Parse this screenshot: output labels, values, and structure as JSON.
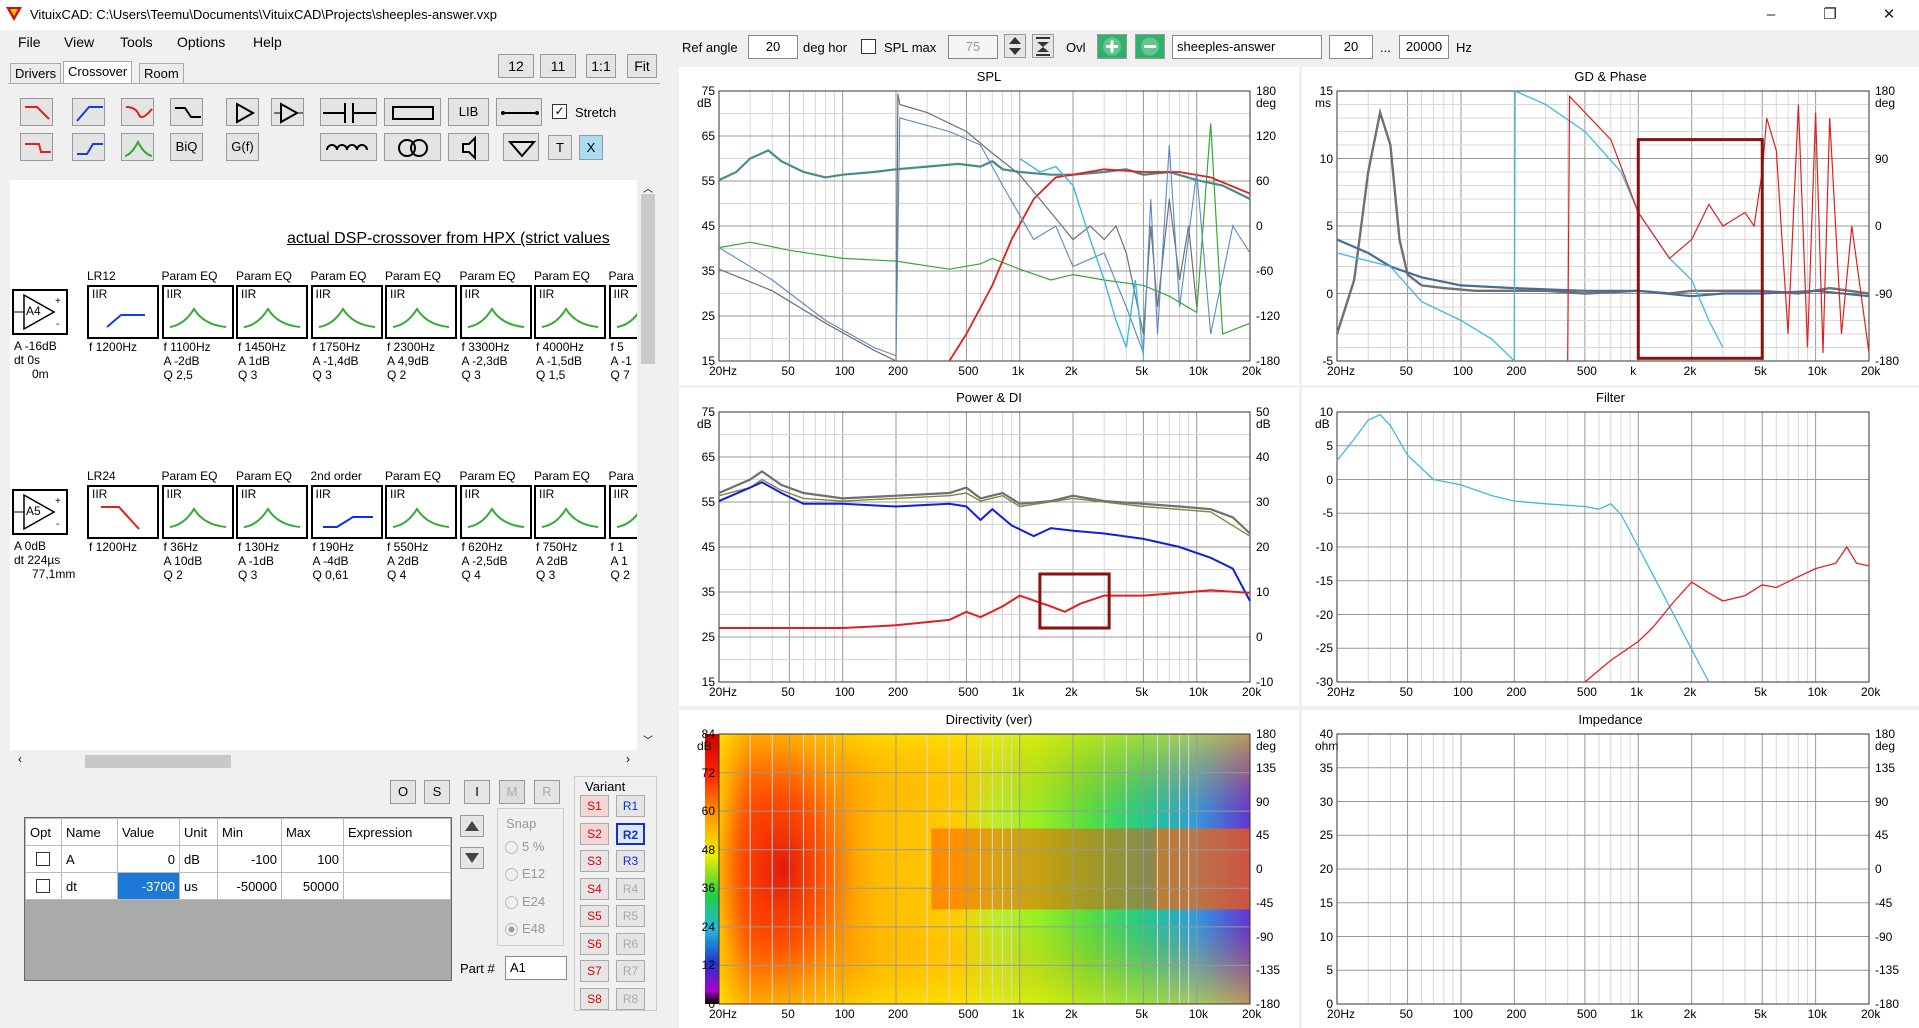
{
  "window": {
    "title": "VituixCAD: C:\\Users\\Teemu\\Documents\\VituixCAD\\Projects\\sheeples-answer.vxp",
    "minimize": "–",
    "restore": "❐",
    "close": "✕"
  },
  "menu": [
    "File",
    "View",
    "Tools",
    "Options",
    "Help"
  ],
  "tabs": [
    "Drivers",
    "Crossover",
    "Room"
  ],
  "zoom_buttons": [
    "12",
    "11",
    "1:1",
    "Fit"
  ],
  "toolbar": {
    "lib": "LIB",
    "biq": "BiQ",
    "gf": "G(f)",
    "t": "T",
    "x": "X",
    "stretch": "Stretch"
  },
  "canvas_title": "actual DSP-crossover from HPX (strict values",
  "row1": {
    "amp": {
      "label": "A4",
      "a": "A  -16dB",
      "dt": "dt 0s",
      "d": "0m"
    },
    "blocks": [
      {
        "head": "LR12",
        "t": "IIR",
        "l1": "f  1200Hz",
        "l2": "",
        "l3": ""
      },
      {
        "head": "Param EQ",
        "t": "IIR",
        "l1": "f  1100Hz",
        "l2": "A  -2dB",
        "l3": "Q 2,5"
      },
      {
        "head": "Param EQ",
        "t": "IIR",
        "l1": "f  1450Hz",
        "l2": "A  1dB",
        "l3": "Q 3"
      },
      {
        "head": "Param EQ",
        "t": "IIR",
        "l1": "f  1750Hz",
        "l2": "A  -1,4dB",
        "l3": "Q 3"
      },
      {
        "head": "Param EQ",
        "t": "IIR",
        "l1": "f  2300Hz",
        "l2": "A  4,9dB",
        "l3": "Q 2"
      },
      {
        "head": "Param EQ",
        "t": "IIR",
        "l1": "f  3300Hz",
        "l2": "A  -2,3dB",
        "l3": "Q 3"
      },
      {
        "head": "Param EQ",
        "t": "IIR",
        "l1": "f  4000Hz",
        "l2": "A  -1,5dB",
        "l3": "Q 1,5"
      },
      {
        "head": "Para",
        "t": "IIR",
        "l1": "f  5",
        "l2": "A  -1",
        "l3": "Q 7"
      }
    ]
  },
  "row2": {
    "amp": {
      "label": "A5",
      "a": "A  0dB",
      "dt": "dt 224µs",
      "d": "77,1mm"
    },
    "blocks": [
      {
        "head": "LR24",
        "t": "IIR",
        "l1": "f  1200Hz",
        "l2": "",
        "l3": ""
      },
      {
        "head": "Param EQ",
        "t": "IIR",
        "l1": "f  36Hz",
        "l2": "A  10dB",
        "l3": "Q 2"
      },
      {
        "head": "Param EQ",
        "t": "IIR",
        "l1": "f  130Hz",
        "l2": "A  -1dB",
        "l3": "Q 3"
      },
      {
        "head": "2nd order",
        "t": "IIR",
        "l1": "f  190Hz",
        "l2": "A  -4dB",
        "l3": "Q 0,61"
      },
      {
        "head": "Param EQ",
        "t": "IIR",
        "l1": "f  550Hz",
        "l2": "A  2dB",
        "l3": "Q 4"
      },
      {
        "head": "Param EQ",
        "t": "IIR",
        "l1": "f  620Hz",
        "l2": "A  -2,5dB",
        "l3": "Q 4"
      },
      {
        "head": "Param EQ",
        "t": "IIR",
        "l1": "f  750Hz",
        "l2": "A  2dB",
        "l3": "Q 3"
      },
      {
        "head": "Para",
        "t": "IIR",
        "l1": "f  1",
        "l2": "A  1",
        "l3": "Q 2"
      }
    ]
  },
  "osim": [
    "O",
    "S",
    "I",
    "M",
    "R"
  ],
  "table": {
    "headers": [
      "Opt",
      "Name",
      "Value",
      "Unit",
      "Min",
      "Max",
      "Expression"
    ],
    "rows": [
      {
        "name": "A",
        "value": "0",
        "unit": "dB",
        "min": "-100",
        "max": "100"
      },
      {
        "name": "dt",
        "value": "-3700",
        "unit": "us",
        "min": "-50000",
        "max": "50000"
      }
    ]
  },
  "snap": {
    "label": "Snap",
    "options": [
      "5 %",
      "E12",
      "E24",
      "E48"
    ]
  },
  "variant": {
    "label": "Variant",
    "s": [
      "S1",
      "S2",
      "S3",
      "S4",
      "S5",
      "S6",
      "S7",
      "S8"
    ],
    "r": [
      "R1",
      "R2",
      "R3",
      "R4",
      "R5",
      "R6",
      "R7",
      "R8"
    ]
  },
  "part": {
    "label": "Part #",
    "value": "A1"
  },
  "topbar": {
    "ref_angle_label": "Ref angle",
    "ref_angle": "20",
    "deg_hor": "deg hor",
    "spl_max_label": "SPL max",
    "spl_max": "75",
    "ovl": "Ovl",
    "name": "sheeples-answer",
    "f_lo": "20",
    "dots": "...",
    "f_hi": "20000",
    "hz": "Hz"
  },
  "freq_ticks": [
    "20Hz",
    "50",
    "100",
    "200",
    "500",
    "1k",
    "2k",
    "5k",
    "10k",
    "20k"
  ],
  "gd_freq_ticks": [
    "20Hz",
    "50",
    "100",
    "200",
    "500",
    "k",
    "2k",
    "5k",
    "10k",
    "20k"
  ],
  "charts": {
    "spl": {
      "title": "SPL",
      "yl_unit": "dB",
      "yr_unit": "deg",
      "yl": [
        "75",
        "65",
        "55",
        "45",
        "35",
        "25",
        "15"
      ],
      "yr": [
        "180",
        "120",
        "60",
        "0",
        "-60",
        "-120",
        "-180"
      ]
    },
    "gd": {
      "title": "GD & Phase",
      "yl_unit": "ms",
      "yr_unit": "deg",
      "yl": [
        "15",
        "10",
        "5",
        "0",
        "-5"
      ],
      "yr": [
        "180",
        "90",
        "0",
        "-90",
        "-180"
      ]
    },
    "power": {
      "title": "Power & DI",
      "yl_unit": "dB",
      "yr_unit": "dB",
      "yl": [
        "75",
        "65",
        "55",
        "45",
        "35",
        "25",
        "15"
      ],
      "yr": [
        "50",
        "40",
        "30",
        "20",
        "10",
        "0",
        "-10"
      ]
    },
    "filter": {
      "title": "Filter",
      "yl_unit": "dB",
      "yl": [
        "10",
        "5",
        "0",
        "-5",
        "-10",
        "-15",
        "-20",
        "-25",
        "-30"
      ]
    },
    "dir": {
      "title": "Directivity (ver)",
      "yl_unit": "dB",
      "yr_unit": "deg",
      "yl": [
        "84",
        "72",
        "60",
        "48",
        "36",
        "24",
        "12",
        "0"
      ],
      "yr": [
        "180",
        "135",
        "90",
        "45",
        "0",
        "-45",
        "-90",
        "-135",
        "-180"
      ]
    },
    "imp": {
      "title": "Impedance",
      "yl_unit": "ohm",
      "yr_unit": "deg",
      "yl": [
        "40",
        "35",
        "30",
        "25",
        "20",
        "15",
        "10",
        "5",
        "0"
      ],
      "yr": [
        "180",
        "135",
        "90",
        "45",
        "0",
        "-45",
        "-90",
        "-135",
        "-180"
      ]
    }
  },
  "colors": {
    "red": "#e02020",
    "green": "#33aa33",
    "blue": "#1020e0",
    "teal": "#4a8a8a",
    "cyan": "#40b8e0",
    "gray": "#707070",
    "darkred": "#8b1010"
  }
}
